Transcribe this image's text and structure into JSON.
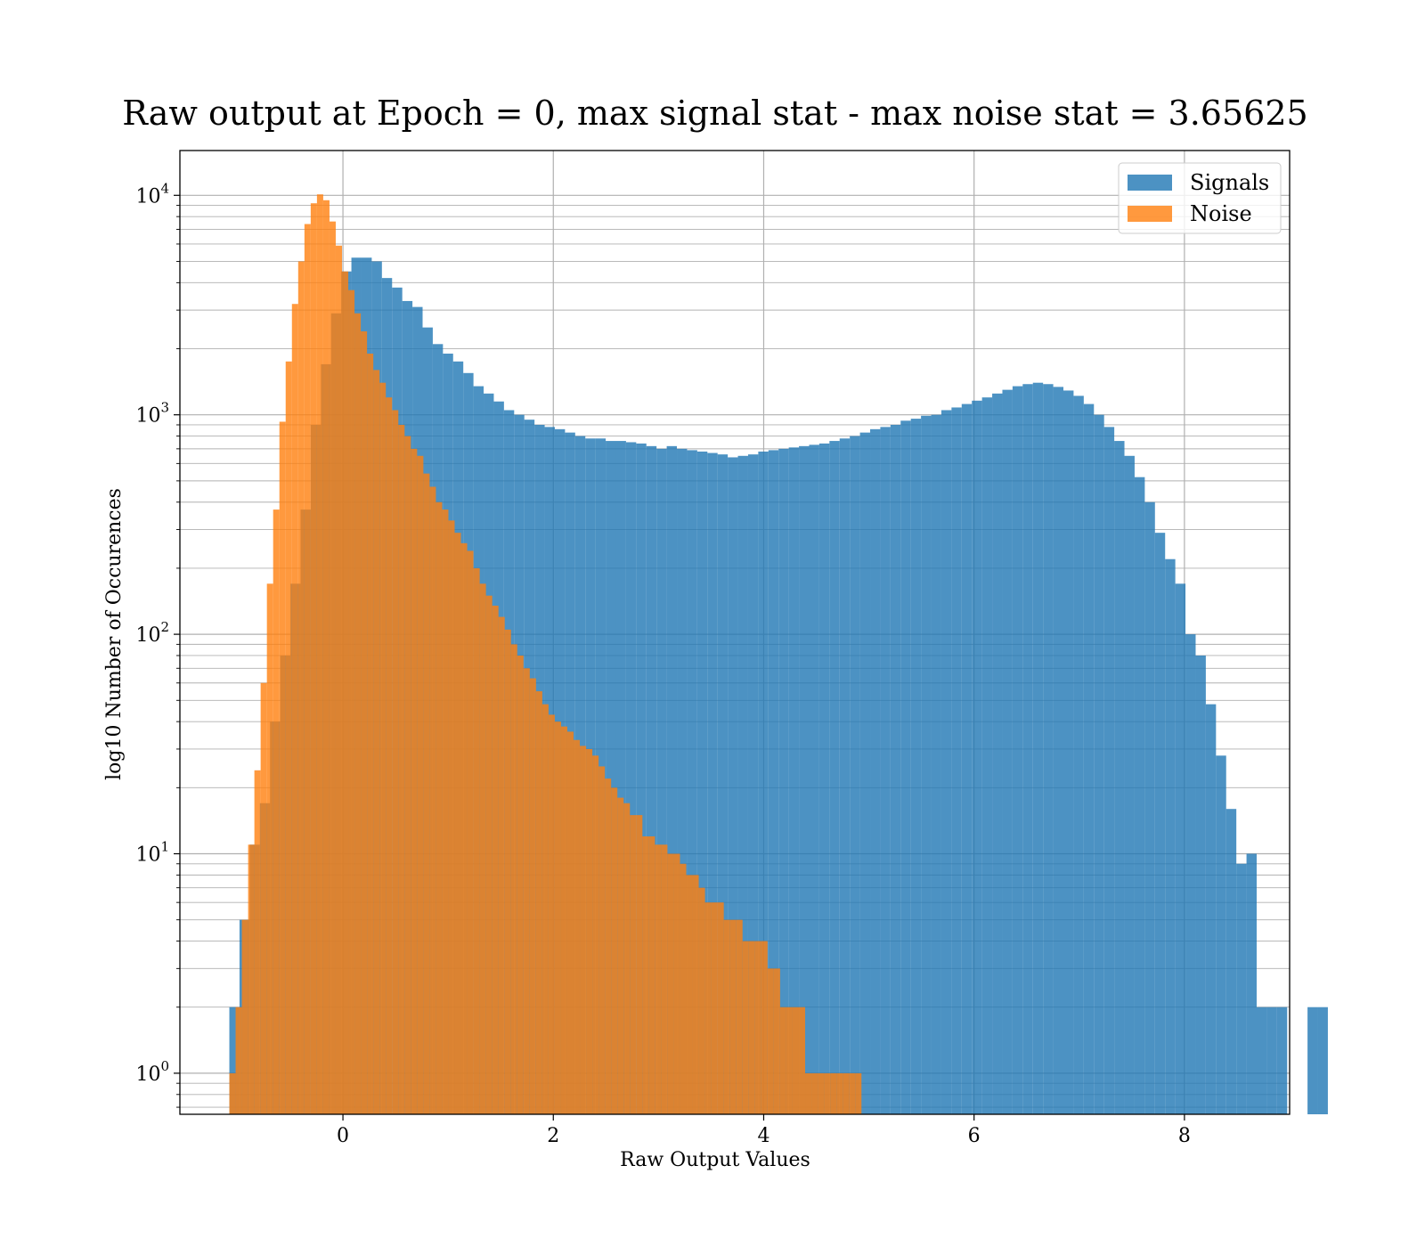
{
  "chart_data": {
    "type": "bar",
    "title": "Raw output at Epoch = 0, max signal stat - max noise stat = 3.65625",
    "xlabel": "Raw Output Values",
    "ylabel": "log10 Number of Occurences",
    "xlim": [
      -1.55,
      9.0
    ],
    "ylim": [
      0.65,
      16000
    ],
    "yscale": "log",
    "grid": true,
    "legend_position": "top-right",
    "x_ticks": [
      {
        "value": 0,
        "label": "0"
      },
      {
        "value": 2,
        "label": "2"
      },
      {
        "value": 4,
        "label": "4"
      },
      {
        "value": 6,
        "label": "6"
      },
      {
        "value": 8,
        "label": "8"
      }
    ],
    "y_ticks": [
      {
        "value": 1,
        "base": "10",
        "exp": "0"
      },
      {
        "value": 10,
        "base": "10",
        "exp": "1"
      },
      {
        "value": 100,
        "base": "10",
        "exp": "2"
      },
      {
        "value": 1000,
        "base": "10",
        "exp": "3"
      },
      {
        "value": 10000,
        "base": "10",
        "exp": "4"
      }
    ],
    "series": [
      {
        "name": "Signals",
        "color": "#1f77b4",
        "opacity": 0.8,
        "bin_start": -1.08,
        "bin_width": 0.0967,
        "counts": [
          2,
          5,
          11,
          17,
          40,
          80,
          170,
          370,
          900,
          1700,
          2900,
          4500,
          5200,
          5200,
          5000,
          4200,
          3800,
          3300,
          3100,
          2500,
          2100,
          1900,
          1750,
          1550,
          1350,
          1250,
          1150,
          1050,
          1000,
          950,
          900,
          880,
          860,
          830,
          800,
          780,
          780,
          760,
          760,
          750,
          740,
          720,
          700,
          720,
          700,
          690,
          680,
          670,
          660,
          640,
          650,
          660,
          680,
          690,
          700,
          710,
          720,
          730,
          740,
          760,
          780,
          800,
          830,
          860,
          880,
          900,
          940,
          960,
          990,
          1000,
          1050,
          1080,
          1120,
          1160,
          1200,
          1250,
          1300,
          1350,
          1380,
          1400,
          1380,
          1340,
          1290,
          1220,
          1120,
          1000,
          880,
          760,
          650,
          520,
          400,
          290,
          220,
          170,
          100,
          80,
          48,
          28,
          16,
          9,
          10,
          2,
          2,
          2,
          0,
          0,
          2,
          2
        ]
      },
      {
        "name": "Noise",
        "color": "#ff7f0e",
        "opacity": 0.8,
        "bin_start": -1.08,
        "bin_width": 0.0595,
        "counts": [
          1,
          2,
          5,
          11,
          24,
          60,
          170,
          370,
          930,
          1750,
          3200,
          5000,
          7400,
          9200,
          10100,
          9500,
          7600,
          5900,
          4500,
          3700,
          2900,
          2400,
          1900,
          1600,
          1400,
          1200,
          1050,
          900,
          800,
          700,
          650,
          540,
          470,
          400,
          370,
          330,
          290,
          260,
          240,
          200,
          170,
          150,
          135,
          120,
          105,
          90,
          80,
          70,
          63,
          55,
          48,
          43,
          40,
          38,
          36,
          33,
          31,
          30,
          28,
          25,
          22,
          20,
          18,
          17,
          15,
          15,
          12,
          12,
          11,
          11,
          10,
          10,
          9,
          8,
          8,
          7,
          6,
          6,
          6,
          5,
          5,
          5,
          4,
          4,
          4,
          4,
          3,
          3,
          2,
          2,
          2,
          2,
          1,
          1,
          1,
          1,
          1,
          1,
          1,
          1,
          1
        ]
      }
    ]
  }
}
